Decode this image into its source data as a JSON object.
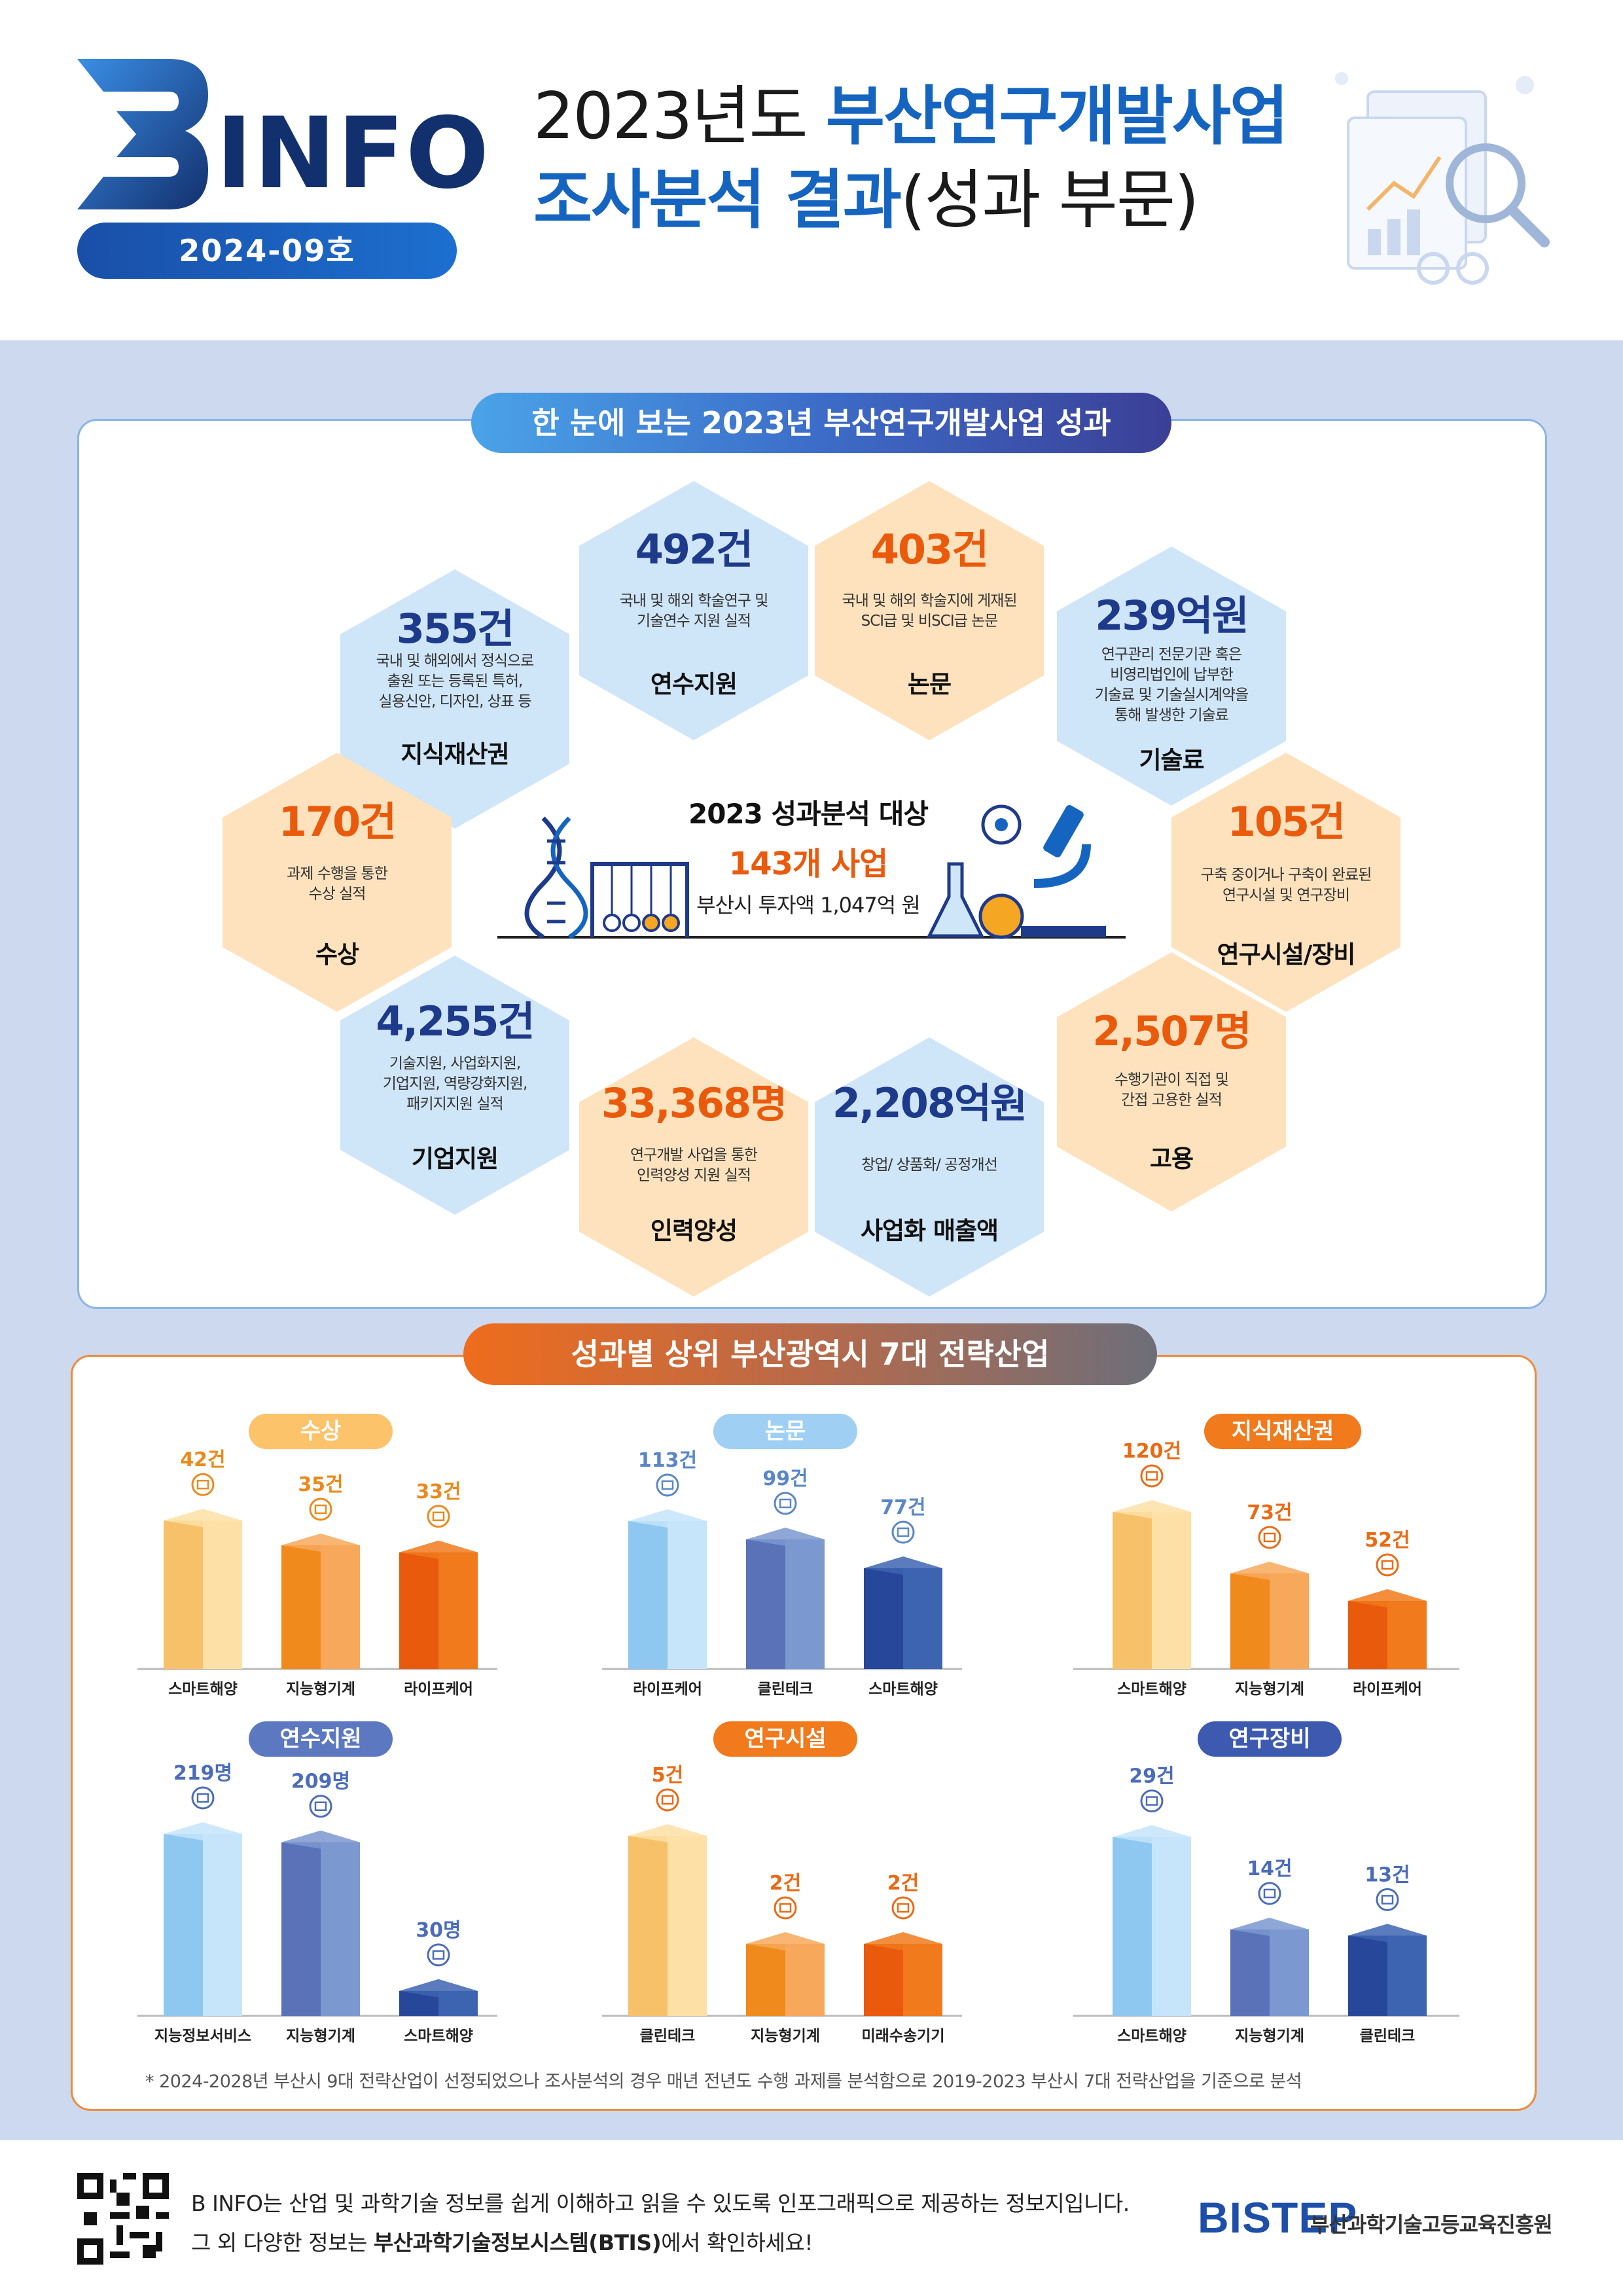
{
  "header": {
    "logo_letter": "B",
    "logo_text": "INFO",
    "issue": "2024-09호",
    "title_line1_a": "2023년도 ",
    "title_line1_b": "부산연구개발사업",
    "title_line2_a": "조사분석 결과",
    "title_line2_b": "(성과 부문)"
  },
  "section1": {
    "title": "한 눈에 보는 2023년 부산연구개발사업 성과",
    "center": {
      "title": "2023 성과분석 대상",
      "count": "143개 사업",
      "invest": "부산시 투자액 1,047억 원"
    },
    "hexes": [
      {
        "value": "492건",
        "desc": "국내 및 해외 학술연구 및\n기술연수 지원 실적",
        "label": "연수지원"
      },
      {
        "value": "403건",
        "desc": "국내 및 해외 학술지에 게재된\nSCI급 및 비SCI급 논문",
        "label": "논문"
      },
      {
        "value": "355건",
        "desc": "국내 및 해외에서 정식으로\n출원 또는 등록된 특허,\n실용신안, 디자인, 상표 등",
        "label": "지식재산권"
      },
      {
        "value": "239억원",
        "desc": "연구관리 전문기관 혹은\n비영리법인에 납부한\n기술료 및 기술실시계약을\n통해 발생한 기술료",
        "label": "기술료"
      },
      {
        "value": "170건",
        "desc": "과제 수행을 통한\n수상 실적",
        "label": "수상"
      },
      {
        "value": "105건",
        "desc": "구축 중이거나 구축이 완료된\n연구시설 및 연구장비",
        "label": "연구시설/장비"
      },
      {
        "value": "4,255건",
        "desc": "기술지원, 사업화지원,\n기업지원, 역량강화지원,\n패키지지원 실적",
        "label": "기업지원"
      },
      {
        "value": "2,507명",
        "desc": "수행기관이 직접 및\n간접 고용한 실적",
        "label": "고용"
      },
      {
        "value": "33,368명",
        "desc": "연구개발 사업을 통한\n인력양성 지원 실적",
        "label": "인력양성"
      },
      {
        "value": "2,208억원",
        "desc": "창업/ 상품화/ 공정개선",
        "label": "사업화 매출액"
      }
    ]
  },
  "section2": {
    "title": "성과별 상위 부산광역시 7대 전략산업",
    "footnote": "* 2024-2028년 부산시 9대 전략산업이 선정되었으나 조사분석의 경우 매년 전년도 수행 과제를 분석함으로 2019-2023 부산시 7대 전략산업을 기준으로 분석"
  },
  "chart_data": [
    {
      "type": "bar",
      "title": "수상",
      "categories": [
        "스마트해양",
        "지능형기계",
        "라이프케어"
      ],
      "values": [
        42,
        35,
        33
      ],
      "labels": [
        "42건",
        "35건",
        "33건"
      ],
      "ylim": [
        0,
        50
      ]
    },
    {
      "type": "bar",
      "title": "논문",
      "categories": [
        "라이프케어",
        "클린테크",
        "스마트해양"
      ],
      "values": [
        113,
        99,
        77
      ],
      "labels": [
        "113건",
        "99건",
        "77건"
      ],
      "ylim": [
        0,
        135
      ]
    },
    {
      "type": "bar",
      "title": "지식재산권",
      "categories": [
        "스마트해양",
        "지능형기계",
        "라이프케어"
      ],
      "values": [
        120,
        73,
        52
      ],
      "labels": [
        "120건",
        "73건",
        "52건"
      ],
      "ylim": [
        0,
        135
      ]
    },
    {
      "type": "bar",
      "title": "연수지원",
      "categories": [
        "지능정보서비스",
        "지능형기계",
        "스마트해양"
      ],
      "values": [
        219,
        209,
        30
      ],
      "labels": [
        "219명",
        "209명",
        "30명"
      ],
      "ylim": [
        0,
        260
      ]
    },
    {
      "type": "bar",
      "title": "연구시설",
      "categories": [
        "클린테크",
        "지능형기계",
        "미래수송기기"
      ],
      "values": [
        5,
        2,
        2
      ],
      "labels": [
        "5건",
        "2건",
        "2건"
      ],
      "ylim": [
        0,
        6
      ]
    },
    {
      "type": "bar",
      "title": "연구장비",
      "categories": [
        "스마트해양",
        "지능형기계",
        "클린테크"
      ],
      "values": [
        29,
        14,
        13
      ],
      "labels": [
        "29건",
        "14건",
        "13건"
      ],
      "ylim": [
        0,
        35
      ]
    }
  ],
  "colors": {
    "navy": "#1e3a8a",
    "orange": "#ea5a0c",
    "blue_accent": "#1565c0",
    "hex_blue": "#cfe5f8",
    "hex_orange": "#fde2bd",
    "bg": "#ccd9ee"
  },
  "footer": {
    "line1": "B INFO는 산업 및 과학기술 정보를 쉽게 이해하고 읽을 수 있도록 인포그래픽으로 제공하는 정보지입니다.",
    "line2_a": "그 외 다양한 정보는 ",
    "line2_b": "부산과학기술정보시스템(BTIS)",
    "line2_c": "에서 확인하세요!",
    "org_logo": "BISTEP",
    "org_name": "부산과학기술고등교육진흥원"
  }
}
